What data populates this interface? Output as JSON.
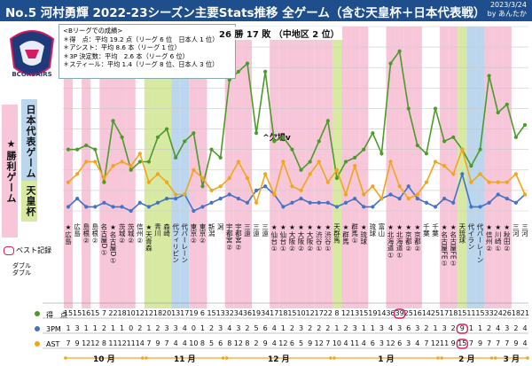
{
  "header": {
    "title": "No.5 河村勇輝 2022-23シーズン主要Stats推移 全ゲーム（含む天皇杯＋日本代表戦）",
    "date": "2023/3/24",
    "by": "by あんたか"
  },
  "logo": {
    "icon": "brex-helmet-logo",
    "text": "BCORSAIRS"
  },
  "stats_box": {
    "heading": "<Bリーグでの成績>",
    "lines": [
      "＊得　点：平均 19.2 点（リーグ 6 位　日本人 1 位）",
      "＊アシスト：平均 8.6 本（リーグ 1 位）",
      "＊3P 決定数：平均　2.6 本（リーグ 6 位）",
      "＊スティール：平均 1.4（リーグ 8 位、日本人 3 位）"
    ]
  },
  "record": "26 勝 17 敗 （中地区 2 位）",
  "side_labels": {
    "win": "★勝利ゲーム",
    "national": "日本代表ゲーム",
    "emperor": "天皇杯"
  },
  "legend": {
    "best": "ベスト記録",
    "double": "ダブル\nダブル"
  },
  "break_label": "^欠場v",
  "row_labels": {
    "pts": "得　点",
    "threep": "3PM",
    "ast": "AST"
  },
  "months": [
    "10 月",
    "11 月",
    "12 月",
    "1 月",
    "2 月",
    "3 月"
  ],
  "colors": {
    "pts": "#4c9a2a",
    "threep": "#4472c4",
    "ast": "#f0a61c",
    "win": "#f7c6d9",
    "national": "#bcd6ee",
    "emperor": "#d8eaa2",
    "title": "#1f4e8c",
    "best": "#d81b60"
  },
  "chart_data": {
    "type": "line",
    "ylim": [
      0,
      45
    ],
    "y_ticks": [
      0,
      5,
      10,
      15,
      20,
      25,
      30,
      35,
      40,
      45
    ],
    "games": [
      {
        "opp": "★広島",
        "note": "",
        "kind": "win",
        "pts": 15,
        "tp": 1,
        "ast": 7
      },
      {
        "opp": "広島",
        "note": "",
        "kind": "none",
        "pts": 15,
        "tp": 3,
        "ast": 9
      },
      {
        "opp": "島根",
        "note": "②",
        "kind": "win",
        "pts": 16,
        "tp": 1,
        "ast": 12
      },
      {
        "opp": "島根",
        "note": "②",
        "kind": "none",
        "pts": 15,
        "tp": 1,
        "ast": 12
      },
      {
        "opp": "名古屋D",
        "note": "①",
        "kind": "win",
        "pts": 7,
        "tp": 2,
        "ast": 8
      },
      {
        "opp": "★名古屋D",
        "note": "①",
        "kind": "win",
        "pts": 22,
        "tp": 1,
        "ast": 11
      },
      {
        "opp": "茨城",
        "note": "②",
        "kind": "win",
        "pts": 18,
        "tp": 1,
        "ast": 12
      },
      {
        "opp": "茨城",
        "note": "②",
        "kind": "win",
        "pts": 10,
        "tp": 0,
        "ast": 11
      },
      {
        "opp": "信州",
        "note": "②",
        "kind": "none",
        "pts": 12,
        "tp": 2,
        "ast": 14
      },
      {
        "opp": "★天青森",
        "note": "",
        "kind": "emperor",
        "pts": 12,
        "tp": 1,
        "ast": 7
      },
      {
        "opp": "青川",
        "note": "",
        "kind": "emperor",
        "pts": 18,
        "tp": 2,
        "ast": 9
      },
      {
        "opp": "森崎",
        "note": "",
        "kind": "emperor",
        "pts": 20,
        "tp": 3,
        "ast": 7
      },
      {
        "opp": "代フィリピン",
        "note": "",
        "kind": "national",
        "pts": 13,
        "tp": 3,
        "ast": 4
      },
      {
        "opp": "代バーレーン",
        "note": "",
        "kind": "national",
        "pts": 17,
        "tp": 4,
        "ast": 4
      },
      {
        "opp": "東京",
        "note": "②",
        "kind": "win",
        "pts": 19,
        "tp": 0,
        "ast": 10
      },
      {
        "opp": "東京",
        "note": "②",
        "kind": "win",
        "pts": 6,
        "tp": 1,
        "ast": 8
      },
      {
        "opp": "新潟",
        "note": "",
        "kind": "none",
        "pts": 15,
        "tp": 2,
        "ast": 5
      },
      {
        "opp": "潟",
        "note": "",
        "kind": "none",
        "pts": 13,
        "tp": 3,
        "ast": 6
      },
      {
        "opp": "宇都宮",
        "note": "②",
        "kind": "win",
        "pts": 32,
        "tp": 4,
        "ast": 8
      },
      {
        "opp": "宇都宮",
        "note": "②",
        "kind": "win",
        "pts": 34,
        "tp": 3,
        "ast": 12
      },
      {
        "opp": "三遠",
        "note": "",
        "kind": "win",
        "pts": 36,
        "tp": 2,
        "ast": 8
      },
      {
        "opp": "三遠",
        "note": "",
        "kind": "none",
        "pts": 19,
        "tp": 5,
        "ast": 2
      },
      {
        "opp": "三遠",
        "note": "",
        "kind": "none",
        "pts": 34,
        "tp": 6,
        "ast": 9
      },
      {
        "opp": "★仙台",
        "note": "①",
        "kind": "win",
        "pts": 17,
        "tp": 4,
        "ast": 4
      },
      {
        "opp": "★仙台",
        "note": "①",
        "kind": "win",
        "pts": 18,
        "tp": 1,
        "ast": 12
      },
      {
        "opp": "★大阪",
        "note": "②",
        "kind": "win",
        "pts": 15,
        "tp": 2,
        "ast": 6
      },
      {
        "opp": "★大阪",
        "note": "②",
        "kind": "win",
        "pts": 10,
        "tp": 3,
        "ast": 5
      },
      {
        "opp": "★大阪",
        "note": "②",
        "kind": "win",
        "pts": 12,
        "tp": 2,
        "ast": 9
      },
      {
        "opp": "★渋谷",
        "note": "①",
        "kind": "win",
        "pts": 17,
        "tp": 2,
        "ast": 12
      },
      {
        "opp": "★渋谷",
        "note": "①",
        "kind": "win",
        "pts": 22,
        "tp": 2,
        "ast": 7
      },
      {
        "opp": "天群馬",
        "note": "",
        "kind": "emperor",
        "pts": 8,
        "tp": 1,
        "ast": 10
      },
      {
        "opp": "★群馬",
        "note": "",
        "kind": "win",
        "pts": 12,
        "tp": 2,
        "ast": 4
      },
      {
        "opp": "群馬",
        "note": "①",
        "kind": "win",
        "pts": 13,
        "tp": 3,
        "ast": 11
      },
      {
        "opp": "★琉球",
        "note": "",
        "kind": "win",
        "pts": 15,
        "tp": 1,
        "ast": 4
      },
      {
        "opp": "琉球",
        "note": "",
        "kind": "none",
        "pts": 19,
        "tp": 1,
        "ast": 6
      },
      {
        "opp": "富山",
        "note": "",
        "kind": "none",
        "pts": 14,
        "tp": 3,
        "ast": 3
      },
      {
        "opp": "★北海道",
        "note": "①",
        "kind": "win",
        "pts": 36,
        "tp": 4,
        "ast": 12
      },
      {
        "opp": "★北海道",
        "note": "①",
        "kind": "win",
        "pts": 39,
        "tp": 3,
        "ast": 6
      },
      {
        "opp": "★京都",
        "note": "②",
        "kind": "win",
        "pts": 25,
        "tp": 6,
        "ast": 3
      },
      {
        "opp": "★京都",
        "note": "②",
        "kind": "win",
        "pts": 16,
        "tp": 3,
        "ast": 4
      },
      {
        "opp": "千葉",
        "note": "",
        "kind": "none",
        "pts": 14,
        "tp": 2,
        "ast": 7
      },
      {
        "opp": "千葉",
        "note": "",
        "kind": "none",
        "pts": 25,
        "tp": 1,
        "ast": 12
      },
      {
        "opp": "★名古屋FE",
        "note": "①",
        "kind": "win",
        "pts": 17,
        "tp": 3,
        "ast": 11
      },
      {
        "opp": "★名古屋FE",
        "note": "①",
        "kind": "win",
        "pts": 18,
        "tp": 2,
        "ast": 9
      },
      {
        "opp": "天琉球",
        "note": "",
        "kind": "emperor",
        "pts": 15,
        "tp": 9,
        "ast": 15
      },
      {
        "opp": "代イラン",
        "note": "",
        "kind": "national",
        "pts": 11,
        "tp": 1,
        "ast": 7
      },
      {
        "opp": "代バーレーン",
        "note": "",
        "kind": "national",
        "pts": 15,
        "tp": 1,
        "ast": 9
      },
      {
        "opp": "★信州",
        "note": "②",
        "kind": "win",
        "pts": 33,
        "tp": 2,
        "ast": 7
      },
      {
        "opp": "★川崎",
        "note": "①",
        "kind": "win",
        "pts": 24,
        "tp": 4,
        "ast": 7
      },
      {
        "opp": "★秋田",
        "note": "②",
        "kind": "win",
        "pts": 26,
        "tp": 3,
        "ast": 7
      },
      {
        "opp": "三河",
        "note": "",
        "kind": "none",
        "pts": 18,
        "tp": 2,
        "ast": 9
      },
      {
        "opp": "三河",
        "note": "",
        "kind": "none",
        "pts": 21,
        "tp": 4,
        "ast": 4
      }
    ],
    "best": {
      "pts_index": 37,
      "tp_index": 44,
      "ast_index": 44
    }
  }
}
